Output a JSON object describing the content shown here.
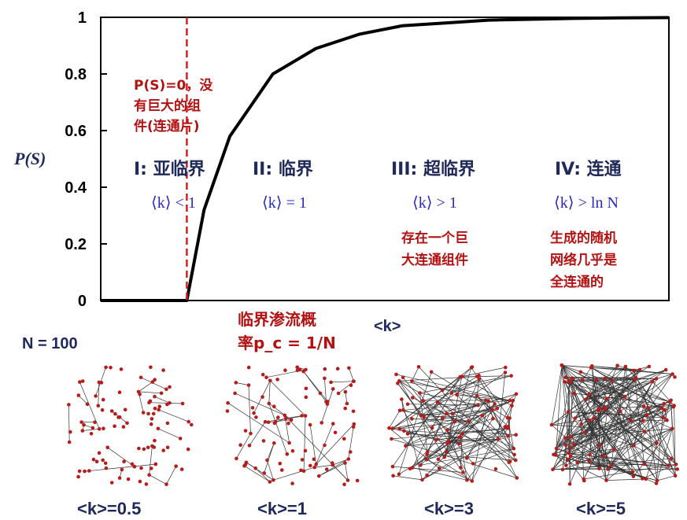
{
  "chart_data": {
    "type": "line",
    "ylabel": "P(S)",
    "xlabel": "<k>",
    "ylim": [
      0,
      1
    ],
    "yticks": [
      "0",
      "0.2",
      "0.4",
      "0.6",
      "0.8",
      "1"
    ],
    "ytick_values": [
      0,
      0.2,
      0.4,
      0.6,
      0.8,
      1
    ],
    "critical_line": {
      "style": "dashed",
      "color": "#d42020"
    },
    "series": [
      {
        "color": "#000000",
        "x": [
          0,
          0.5,
          1,
          1.2,
          1.5,
          2,
          2.5,
          3,
          3.5,
          4,
          4.5,
          5,
          5.5,
          6,
          6.6
        ],
        "y": [
          0,
          0,
          0,
          0.32,
          0.58,
          0.8,
          0.89,
          0.94,
          0.97,
          0.98,
          0.99,
          0.993,
          0.996,
          0.998,
          0.999
        ]
      }
    ]
  },
  "notes": {
    "zero_note": [
      "P(S)=0，没",
      "有巨大的组",
      "件(连通片)"
    ],
    "threshold_note": [
      "临界渗流概",
      "率p_c = 1/N"
    ],
    "supercritical_note": [
      "存在一个巨",
      "大连通组件"
    ],
    "connected_note": [
      "生成的随机",
      "网络几乎是",
      "全连通的"
    ]
  },
  "regions": [
    {
      "title": "I: 亚临界",
      "condition": "⟨k⟩ < 1"
    },
    {
      "title": "II: 临界",
      "condition": "⟨k⟩ = 1"
    },
    {
      "title": "III: 超临界",
      "condition": "⟨k⟩ > 1"
    },
    {
      "title": "IV: 连通",
      "condition": "⟨k⟩ > ln N"
    }
  ],
  "network": {
    "n_label": "N = 100",
    "node_color": "#b51c1c",
    "panels": [
      {
        "label": "<k>=0.5",
        "avg_degree": 0.5
      },
      {
        "label": "<k>=1",
        "avg_degree": 1
      },
      {
        "label": "<k>=3",
        "avg_degree": 3
      },
      {
        "label": "<k>=5",
        "avg_degree": 5
      }
    ]
  }
}
